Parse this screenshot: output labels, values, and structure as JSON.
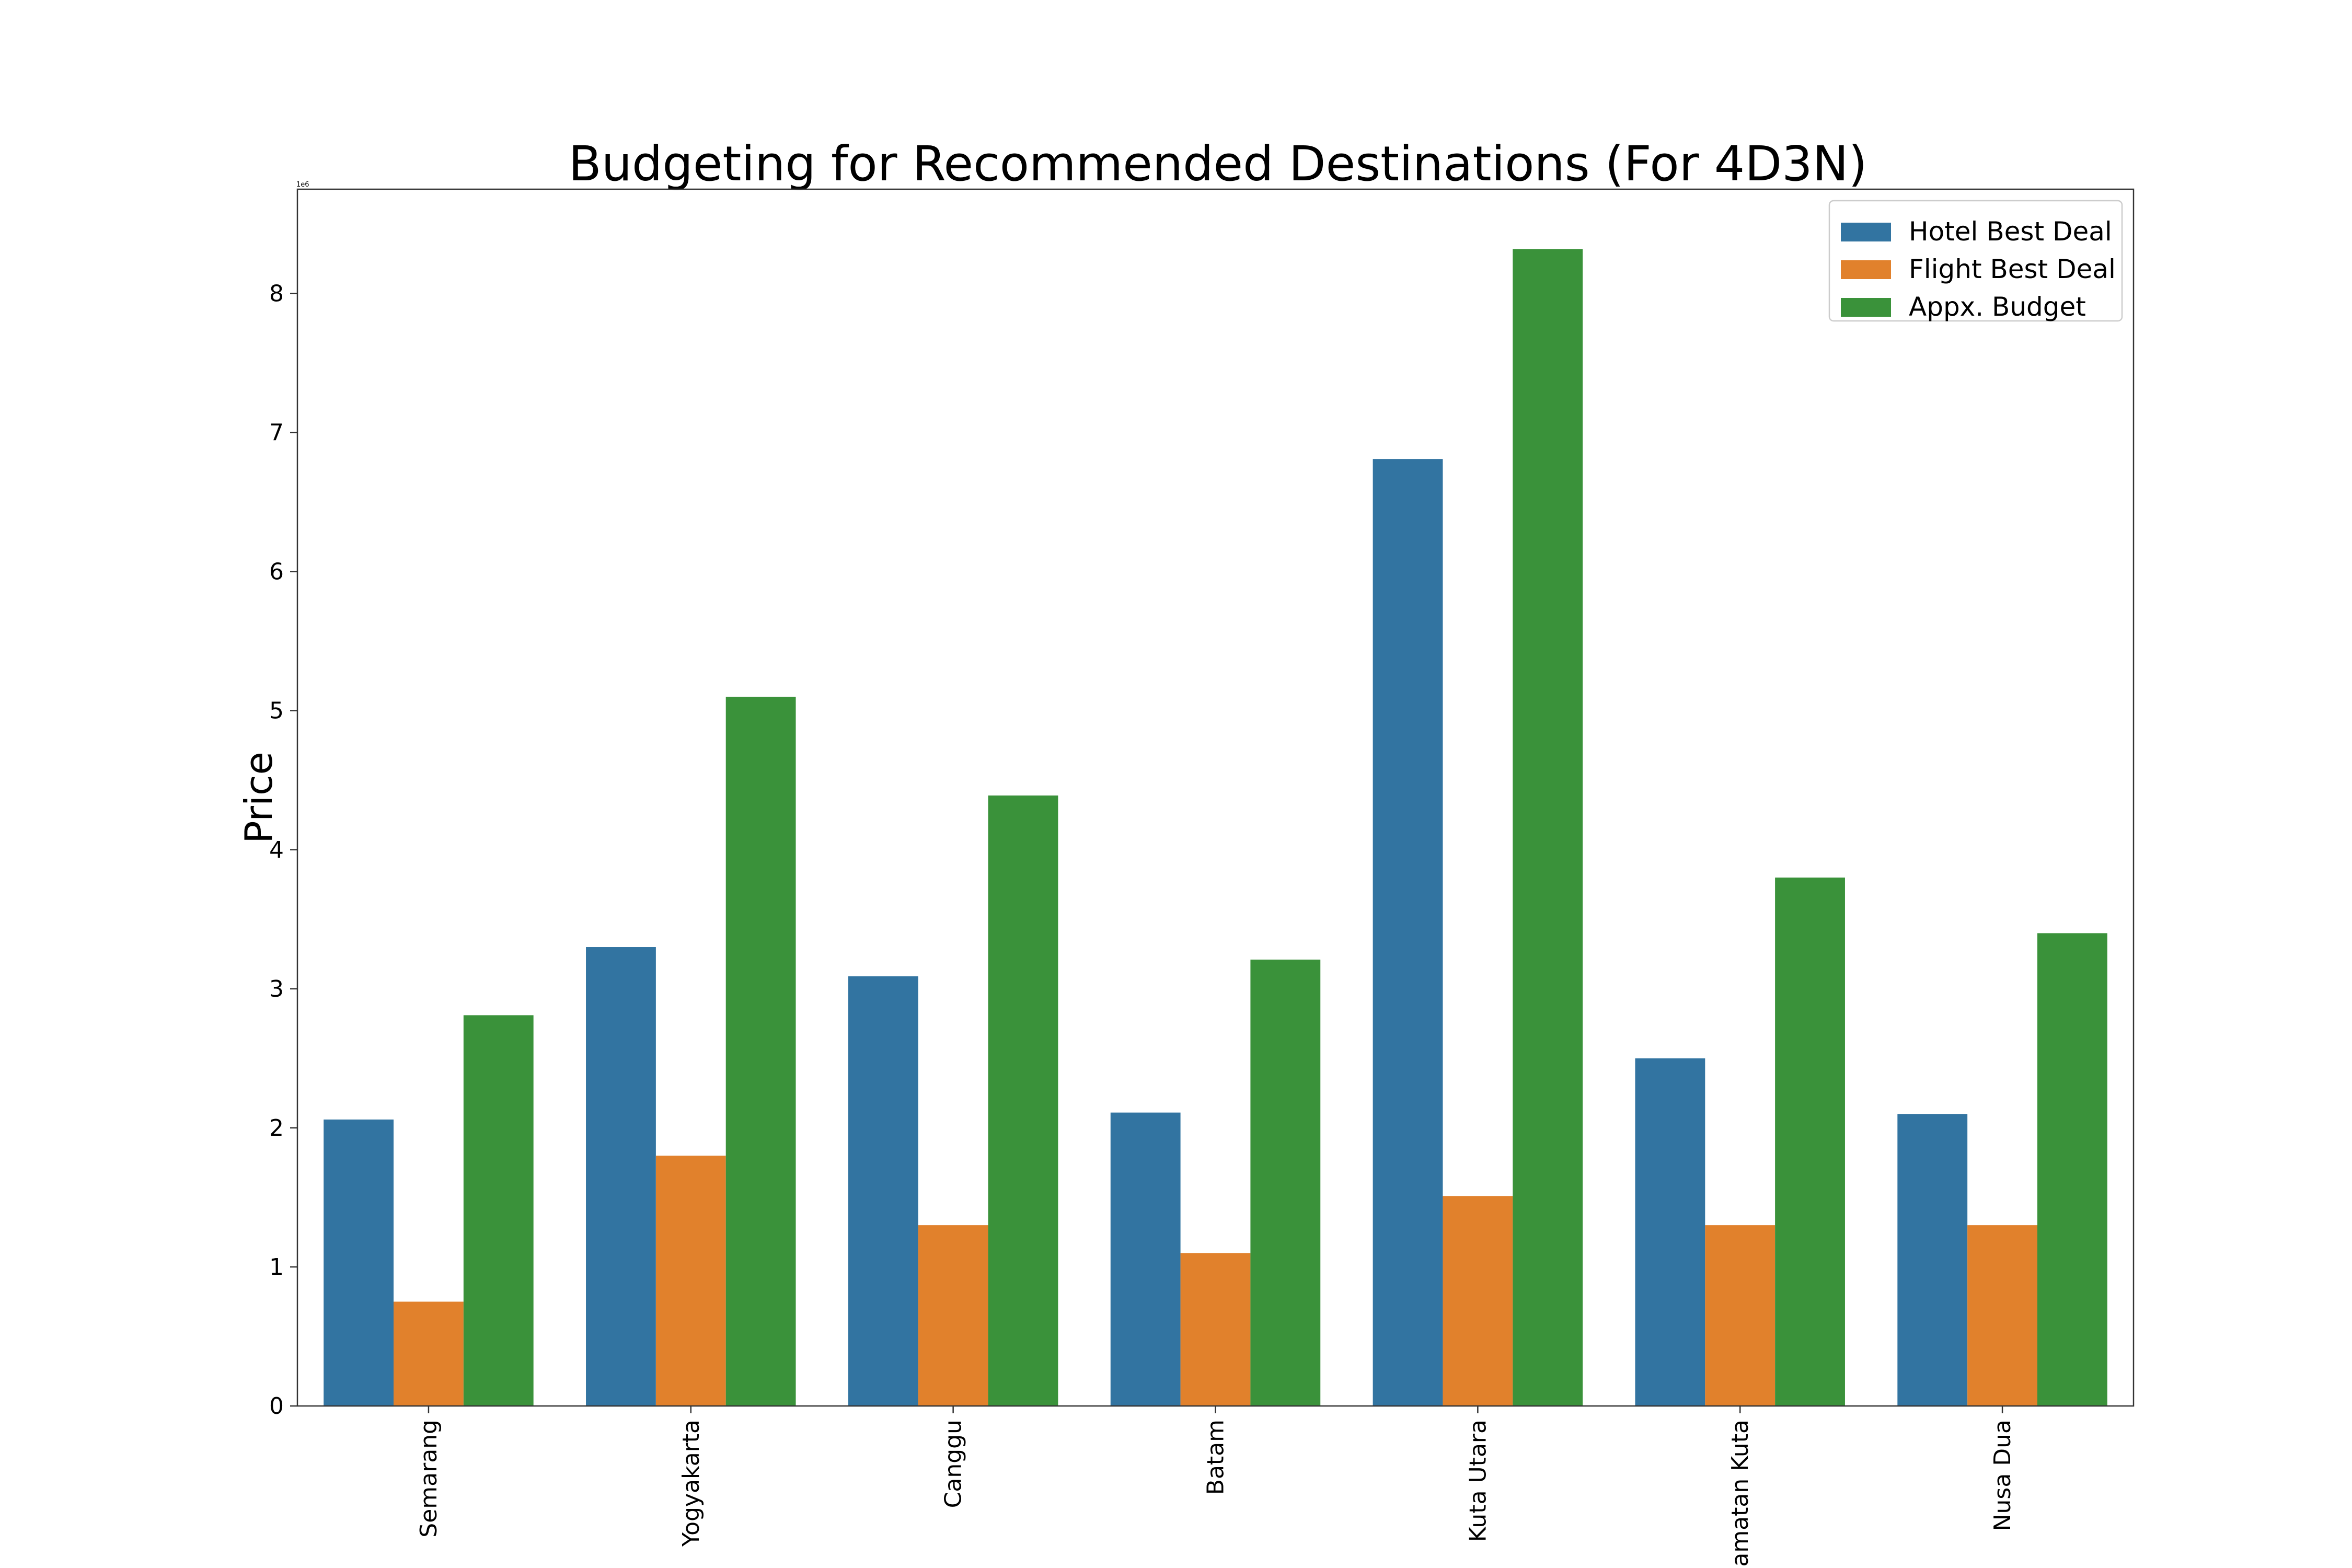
{
  "chart_data": {
    "type": "bar",
    "title": "Budgeting for Recommended Destinations (For 4D3N)",
    "xlabel": "",
    "ylabel": "Price",
    "y_offset_label": "1e6",
    "ylim": [
      0,
      8750000
    ],
    "yticks": [
      0,
      1000000,
      2000000,
      3000000,
      4000000,
      5000000,
      6000000,
      7000000,
      8000000
    ],
    "ytick_labels": [
      "0",
      "1",
      "2",
      "3",
      "4",
      "5",
      "6",
      "7",
      "8"
    ],
    "grid": false,
    "legend_position": "top-right",
    "categories": [
      "Semarang",
      "Yogyakarta",
      "Canggu",
      "Batam",
      "Kuta Utara",
      "Kecamatan Kuta",
      "Nusa Dua"
    ],
    "series": [
      {
        "name": "Hotel Best Deal",
        "color": "#3274a1",
        "values": [
          2060000,
          3300000,
          3090000,
          2110000,
          6810000,
          2500000,
          2100000
        ]
      },
      {
        "name": "Flight Best Deal",
        "color": "#e1812c",
        "values": [
          750000,
          1800000,
          1300000,
          1100000,
          1510000,
          1300000,
          1300000
        ]
      },
      {
        "name": "Appx. Budget",
        "color": "#3a923a",
        "values": [
          2810000,
          5100000,
          4390000,
          3210000,
          8320000,
          3800000,
          3400000
        ]
      }
    ]
  }
}
